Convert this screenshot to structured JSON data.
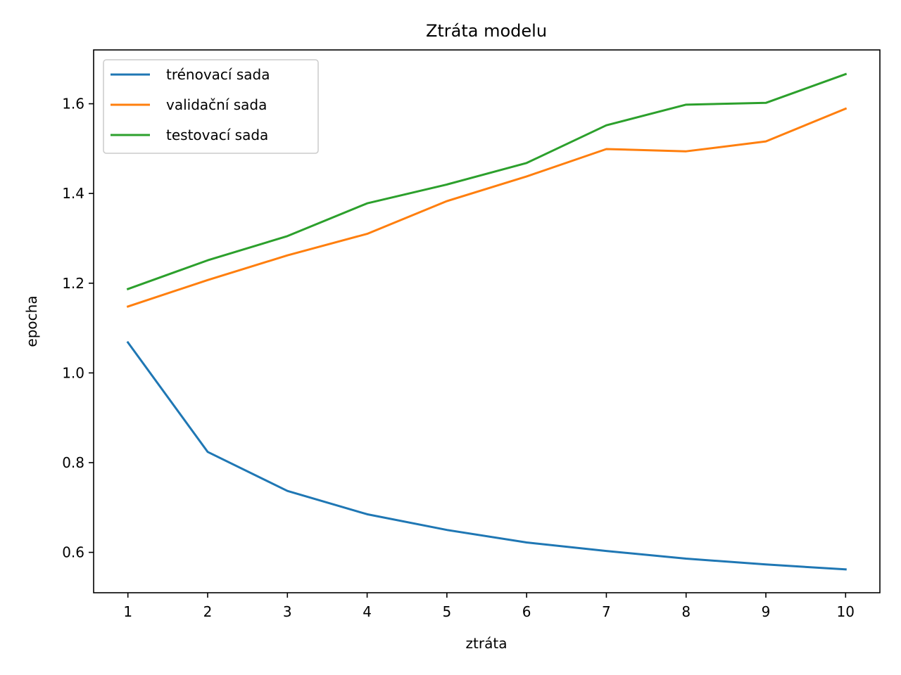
{
  "chart_data": {
    "type": "line",
    "title": "Ztráta modelu",
    "xlabel": "ztráta",
    "ylabel": "epocha",
    "x": [
      1,
      2,
      3,
      4,
      5,
      6,
      7,
      8,
      9,
      10
    ],
    "xticks": [
      "1",
      "2",
      "3",
      "4",
      "5",
      "6",
      "7",
      "8",
      "9",
      "10"
    ],
    "yticks": [
      "0.6",
      "0.8",
      "1.0",
      "1.2",
      "1.4",
      "1.6"
    ],
    "xlim": [
      0.57,
      10.43
    ],
    "ylim": [
      0.51,
      1.72
    ],
    "grid": false,
    "legend_position": "upper-left",
    "series": [
      {
        "name": "trénovací sada",
        "color": "#1f77b4",
        "values": [
          1.068,
          0.824,
          0.737,
          0.685,
          0.65,
          0.622,
          0.603,
          0.586,
          0.573,
          0.562
        ]
      },
      {
        "name": "validační sada",
        "color": "#ff7f0e",
        "values": [
          1.148,
          1.207,
          1.262,
          1.31,
          1.383,
          1.438,
          1.499,
          1.494,
          1.516,
          1.589
        ]
      },
      {
        "name": "testovací sada",
        "color": "#2ca02c",
        "values": [
          1.187,
          1.251,
          1.305,
          1.378,
          1.42,
          1.468,
          1.552,
          1.598,
          1.602,
          1.666
        ]
      }
    ]
  }
}
